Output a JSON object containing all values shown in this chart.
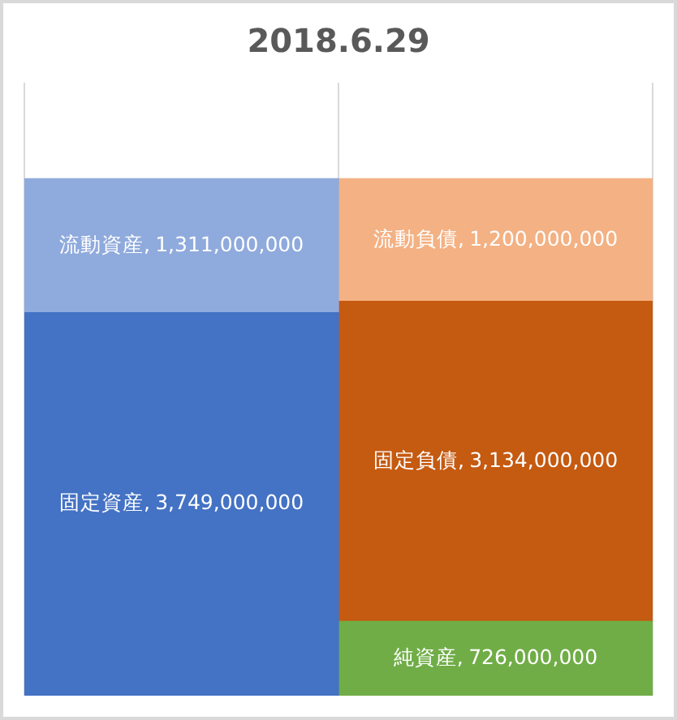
{
  "chart_data": {
    "type": "bar",
    "title": "2018.6.29",
    "categories": [
      null,
      null
    ],
    "stacked": true,
    "tick_labels": false,
    "grid": "x",
    "series": [
      {
        "name": "固定資産,",
        "color": "#4472c4",
        "values": [
          3749000000,
          null
        ],
        "value_labels": [
          "3,749,000,000",
          null
        ]
      },
      {
        "name": "流動資産,",
        "color": "#8faadc",
        "values": [
          1311000000,
          null
        ],
        "value_labels": [
          "1,311,000,000",
          null
        ]
      },
      {
        "name": "純資産,",
        "color": "#70ad47",
        "values": [
          null,
          726000000
        ],
        "value_labels": [
          null,
          "726,000,000"
        ]
      },
      {
        "name": "固定負債,",
        "color": "#c55a11",
        "values": [
          null,
          3134000000
        ],
        "value_labels": [
          null,
          "3,134,000,000"
        ]
      },
      {
        "name": "流動負債,",
        "color": "#f4b183",
        "values": [
          null,
          1200000000
        ],
        "value_labels": [
          null,
          "1,200,000,000"
        ]
      }
    ]
  }
}
